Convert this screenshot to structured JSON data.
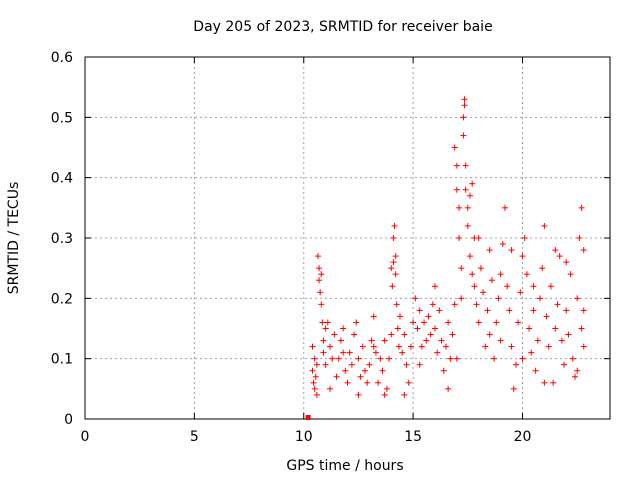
{
  "chart_data": {
    "type": "scatter",
    "title": "Day 205 of 2023, SRMTID for receiver baie",
    "xlabel": "GPS time / hours",
    "ylabel": "SRMTID / TECUs",
    "xlim": [
      0,
      24
    ],
    "ylim": [
      0,
      0.6
    ],
    "x_ticks": [
      0,
      5,
      10,
      15,
      20
    ],
    "x_tick_labels": [
      "0",
      "5",
      "10",
      "15",
      "20"
    ],
    "y_ticks": [
      0,
      0.1,
      0.2,
      0.3,
      0.4,
      0.5,
      0.6
    ],
    "y_tick_labels": [
      "0",
      "0.1",
      "0.2",
      "0.3",
      "0.4",
      "0.5",
      "0.6"
    ],
    "grid": true,
    "marker": "plus",
    "color": "#ff0000",
    "series": [
      {
        "name": "SRMTID",
        "points": [
          [
            10.2,
            0.0
          ],
          [
            10.4,
            0.12
          ],
          [
            10.4,
            0.08
          ],
          [
            10.45,
            0.06
          ],
          [
            10.5,
            0.05
          ],
          [
            10.5,
            0.1
          ],
          [
            10.55,
            0.07
          ],
          [
            10.6,
            0.04
          ],
          [
            10.6,
            0.09
          ],
          [
            10.65,
            0.27
          ],
          [
            10.7,
            0.25
          ],
          [
            10.7,
            0.23
          ],
          [
            10.75,
            0.21
          ],
          [
            10.8,
            0.19
          ],
          [
            10.8,
            0.24
          ],
          [
            10.85,
            0.16
          ],
          [
            10.9,
            0.13
          ],
          [
            10.9,
            0.11
          ],
          [
            11.0,
            0.15
          ],
          [
            11.0,
            0.09
          ],
          [
            11.1,
            0.16
          ],
          [
            11.2,
            0.12
          ],
          [
            11.3,
            0.1
          ],
          [
            11.4,
            0.14
          ],
          [
            11.5,
            0.07
          ],
          [
            11.6,
            0.1
          ],
          [
            11.7,
            0.13
          ],
          [
            11.8,
            0.15
          ],
          [
            11.9,
            0.08
          ],
          [
            12.0,
            0.06
          ],
          [
            12.1,
            0.11
          ],
          [
            12.2,
            0.09
          ],
          [
            12.3,
            0.14
          ],
          [
            12.4,
            0.16
          ],
          [
            12.5,
            0.1
          ],
          [
            12.6,
            0.07
          ],
          [
            12.7,
            0.12
          ],
          [
            12.8,
            0.08
          ],
          [
            12.9,
            0.06
          ],
          [
            13.0,
            0.09
          ],
          [
            13.1,
            0.13
          ],
          [
            13.2,
            0.17
          ],
          [
            13.3,
            0.11
          ],
          [
            13.4,
            0.06
          ],
          [
            13.5,
            0.1
          ],
          [
            13.6,
            0.08
          ],
          [
            13.7,
            0.13
          ],
          [
            13.8,
            0.05
          ],
          [
            13.9,
            0.1
          ],
          [
            14.0,
            0.14
          ],
          [
            14.0,
            0.25
          ],
          [
            14.05,
            0.22
          ],
          [
            14.1,
            0.26
          ],
          [
            14.1,
            0.3
          ],
          [
            14.15,
            0.32
          ],
          [
            14.2,
            0.24
          ],
          [
            14.2,
            0.27
          ],
          [
            14.25,
            0.19
          ],
          [
            14.3,
            0.15
          ],
          [
            14.35,
            0.12
          ],
          [
            14.4,
            0.17
          ],
          [
            14.5,
            0.11
          ],
          [
            14.6,
            0.14
          ],
          [
            14.7,
            0.09
          ],
          [
            14.8,
            0.06
          ],
          [
            14.9,
            0.12
          ],
          [
            15.0,
            0.16
          ],
          [
            15.1,
            0.2
          ],
          [
            15.2,
            0.15
          ],
          [
            15.3,
            0.18
          ],
          [
            15.4,
            0.12
          ],
          [
            15.5,
            0.16
          ],
          [
            15.6,
            0.13
          ],
          [
            15.7,
            0.17
          ],
          [
            15.8,
            0.14
          ],
          [
            15.9,
            0.19
          ],
          [
            16.0,
            0.15
          ],
          [
            16.1,
            0.11
          ],
          [
            16.2,
            0.18
          ],
          [
            16.3,
            0.13
          ],
          [
            16.4,
            0.08
          ],
          [
            16.5,
            0.12
          ],
          [
            16.6,
            0.16
          ],
          [
            16.7,
            0.1
          ],
          [
            16.8,
            0.14
          ],
          [
            16.9,
            0.19
          ],
          [
            16.9,
            0.45
          ],
          [
            17.0,
            0.42
          ],
          [
            17.0,
            0.38
          ],
          [
            17.1,
            0.35
          ],
          [
            17.1,
            0.3
          ],
          [
            17.2,
            0.25
          ],
          [
            17.2,
            0.2
          ],
          [
            17.3,
            0.5
          ],
          [
            17.3,
            0.47
          ],
          [
            17.35,
            0.52
          ],
          [
            17.35,
            0.53
          ],
          [
            17.4,
            0.42
          ],
          [
            17.4,
            0.38
          ],
          [
            17.5,
            0.35
          ],
          [
            17.5,
            0.32
          ],
          [
            17.6,
            0.37
          ],
          [
            17.6,
            0.27
          ],
          [
            17.7,
            0.24
          ],
          [
            17.7,
            0.39
          ],
          [
            17.8,
            0.22
          ],
          [
            17.8,
            0.3
          ],
          [
            17.9,
            0.19
          ],
          [
            18.0,
            0.16
          ],
          [
            18.1,
            0.25
          ],
          [
            18.2,
            0.21
          ],
          [
            18.3,
            0.12
          ],
          [
            18.4,
            0.18
          ],
          [
            18.5,
            0.14
          ],
          [
            18.6,
            0.23
          ],
          [
            18.7,
            0.1
          ],
          [
            18.8,
            0.16
          ],
          [
            18.9,
            0.2
          ],
          [
            19.0,
            0.13
          ],
          [
            19.1,
            0.29
          ],
          [
            19.2,
            0.35
          ],
          [
            19.3,
            0.22
          ],
          [
            19.4,
            0.18
          ],
          [
            19.5,
            0.12
          ],
          [
            19.6,
            0.05
          ],
          [
            19.7,
            0.09
          ],
          [
            19.8,
            0.16
          ],
          [
            19.9,
            0.21
          ],
          [
            20.0,
            0.27
          ],
          [
            20.1,
            0.3
          ],
          [
            20.2,
            0.24
          ],
          [
            20.3,
            0.15
          ],
          [
            20.4,
            0.11
          ],
          [
            20.5,
            0.18
          ],
          [
            20.6,
            0.08
          ],
          [
            20.7,
            0.13
          ],
          [
            20.8,
            0.2
          ],
          [
            20.9,
            0.25
          ],
          [
            21.0,
            0.32
          ],
          [
            21.1,
            0.17
          ],
          [
            21.2,
            0.12
          ],
          [
            21.3,
            0.22
          ],
          [
            21.4,
            0.06
          ],
          [
            21.5,
            0.15
          ],
          [
            21.6,
            0.19
          ],
          [
            21.7,
            0.27
          ],
          [
            21.8,
            0.13
          ],
          [
            21.9,
            0.09
          ],
          [
            22.0,
            0.18
          ],
          [
            22.1,
            0.14
          ],
          [
            22.2,
            0.24
          ],
          [
            22.3,
            0.1
          ],
          [
            22.4,
            0.07
          ],
          [
            22.5,
            0.2
          ],
          [
            22.6,
            0.3
          ],
          [
            22.7,
            0.35
          ],
          [
            22.7,
            0.15
          ],
          [
            22.8,
            0.28
          ],
          [
            22.8,
            0.12
          ],
          [
            22.8,
            0.18
          ],
          [
            11.2,
            0.05
          ],
          [
            11.8,
            0.11
          ],
          [
            12.5,
            0.04
          ],
          [
            13.2,
            0.12
          ],
          [
            13.7,
            0.04
          ],
          [
            14.6,
            0.04
          ],
          [
            15.3,
            0.09
          ],
          [
            16.0,
            0.22
          ],
          [
            16.6,
            0.05
          ],
          [
            17.0,
            0.1
          ],
          [
            18.0,
            0.3
          ],
          [
            18.5,
            0.28
          ],
          [
            19.0,
            0.24
          ],
          [
            19.5,
            0.28
          ],
          [
            20.0,
            0.1
          ],
          [
            20.5,
            0.22
          ],
          [
            21.0,
            0.06
          ],
          [
            21.5,
            0.28
          ],
          [
            22.0,
            0.26
          ],
          [
            22.5,
            0.08
          ]
        ]
      }
    ]
  }
}
